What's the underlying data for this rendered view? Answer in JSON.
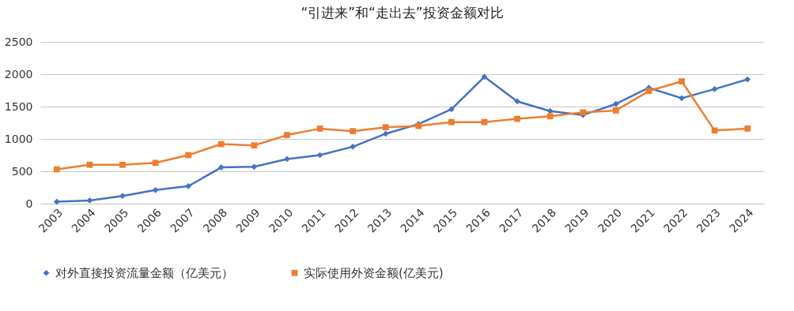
{
  "chart_data": {
    "type": "line",
    "title": "“引进来”和“走出去”投资金额对比",
    "categories": [
      "2003",
      "2004",
      "2005",
      "2006",
      "2007",
      "2008",
      "2009",
      "2010",
      "2011",
      "2012",
      "2013",
      "2014",
      "2015",
      "2016",
      "2017",
      "2018",
      "2019",
      "2020",
      "2021",
      "2022",
      "2023",
      "2024"
    ],
    "series": [
      {
        "name": "对外直接投资流量金额（亿美元）",
        "color": "#4472c4",
        "marker": "diamond",
        "values": [
          30,
          50,
          120,
          210,
          270,
          560,
          570,
          690,
          750,
          880,
          1080,
          1230,
          1460,
          1960,
          1580,
          1430,
          1370,
          1540,
          1790,
          1630,
          1770,
          1920
        ]
      },
      {
        "name": "实际使用外资金额(亿美元)",
        "color": "#ed7d31",
        "marker": "square",
        "values": [
          530,
          600,
          600,
          630,
          750,
          920,
          900,
          1060,
          1160,
          1120,
          1180,
          1200,
          1260,
          1260,
          1310,
          1350,
          1410,
          1440,
          1740,
          1890,
          1130,
          1160
        ]
      }
    ],
    "ylim": [
      0,
      2500
    ],
    "yticks": [
      0,
      500,
      1000,
      1500,
      2000,
      2500
    ],
    "grid": "y",
    "legend": "bottom"
  }
}
